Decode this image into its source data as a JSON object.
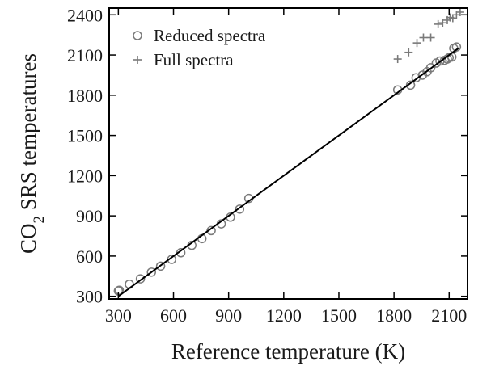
{
  "chart_data": {
    "type": "scatter",
    "xlabel": "Reference temperature (K)",
    "ylabel": {
      "prefix": "CO",
      "subscript": "2",
      "suffix": " SRS temperatures"
    },
    "xlim": [
      250,
      2200
    ],
    "ylim": [
      280,
      2450
    ],
    "xticks": [
      300,
      600,
      900,
      1200,
      1500,
      1800,
      2100
    ],
    "yticks": [
      300,
      600,
      900,
      1200,
      1500,
      1800,
      2100,
      2400
    ],
    "grid": false,
    "legend_position": "top-left",
    "reference_line": {
      "x": [
        300,
        2150
      ],
      "y": [
        300,
        2150
      ]
    },
    "series": [
      {
        "name": "Reduced spectra",
        "marker": "circle",
        "color": "#7a7a7a",
        "points": [
          [
            300,
            340
          ],
          [
            305,
            345
          ],
          [
            360,
            390
          ],
          [
            420,
            430
          ],
          [
            480,
            480
          ],
          [
            530,
            525
          ],
          [
            590,
            575
          ],
          [
            640,
            625
          ],
          [
            700,
            680
          ],
          [
            755,
            730
          ],
          [
            805,
            790
          ],
          [
            860,
            840
          ],
          [
            910,
            890
          ],
          [
            960,
            950
          ],
          [
            1010,
            1030
          ],
          [
            1820,
            1840
          ],
          [
            1890,
            1875
          ],
          [
            1920,
            1930
          ],
          [
            1955,
            1950
          ],
          [
            1980,
            1975
          ],
          [
            2000,
            2005
          ],
          [
            2030,
            2040
          ],
          [
            2050,
            2055
          ],
          [
            2075,
            2060
          ],
          [
            2090,
            2070
          ],
          [
            2100,
            2080
          ],
          [
            2115,
            2085
          ],
          [
            2125,
            2150
          ],
          [
            2140,
            2160
          ]
        ]
      },
      {
        "name": "Full spectra",
        "marker": "plus",
        "color": "#7a7a7a",
        "points": [
          [
            1820,
            2070
          ],
          [
            1880,
            2120
          ],
          [
            1925,
            2190
          ],
          [
            1960,
            2230
          ],
          [
            2000,
            2230
          ],
          [
            2040,
            2330
          ],
          [
            2065,
            2340
          ],
          [
            2090,
            2360
          ],
          [
            2105,
            2380
          ],
          [
            2120,
            2375
          ],
          [
            2140,
            2400
          ],
          [
            2160,
            2420
          ]
        ]
      }
    ]
  }
}
